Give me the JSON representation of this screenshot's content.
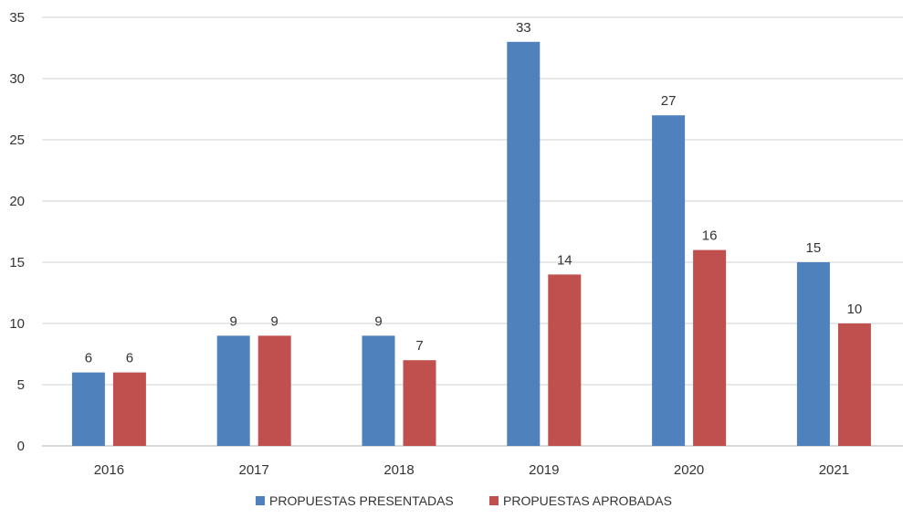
{
  "chart_data": {
    "type": "bar",
    "categories": [
      "2016",
      "2017",
      "2018",
      "2019",
      "2020",
      "2021"
    ],
    "series": [
      {
        "name": "PROPUESTAS PRESENTADAS",
        "values": [
          6,
          9,
          9,
          33,
          27,
          15
        ],
        "color": "#4f81bd"
      },
      {
        "name": "PROPUESTAS APROBADAS",
        "values": [
          6,
          9,
          7,
          14,
          16,
          10
        ],
        "color": "#c0504d"
      }
    ],
    "ylim": [
      0,
      35
    ],
    "yticks": [
      0,
      5,
      10,
      15,
      20,
      25,
      30,
      35
    ],
    "grid": true,
    "data_labels": true,
    "legend_position": "bottom"
  }
}
